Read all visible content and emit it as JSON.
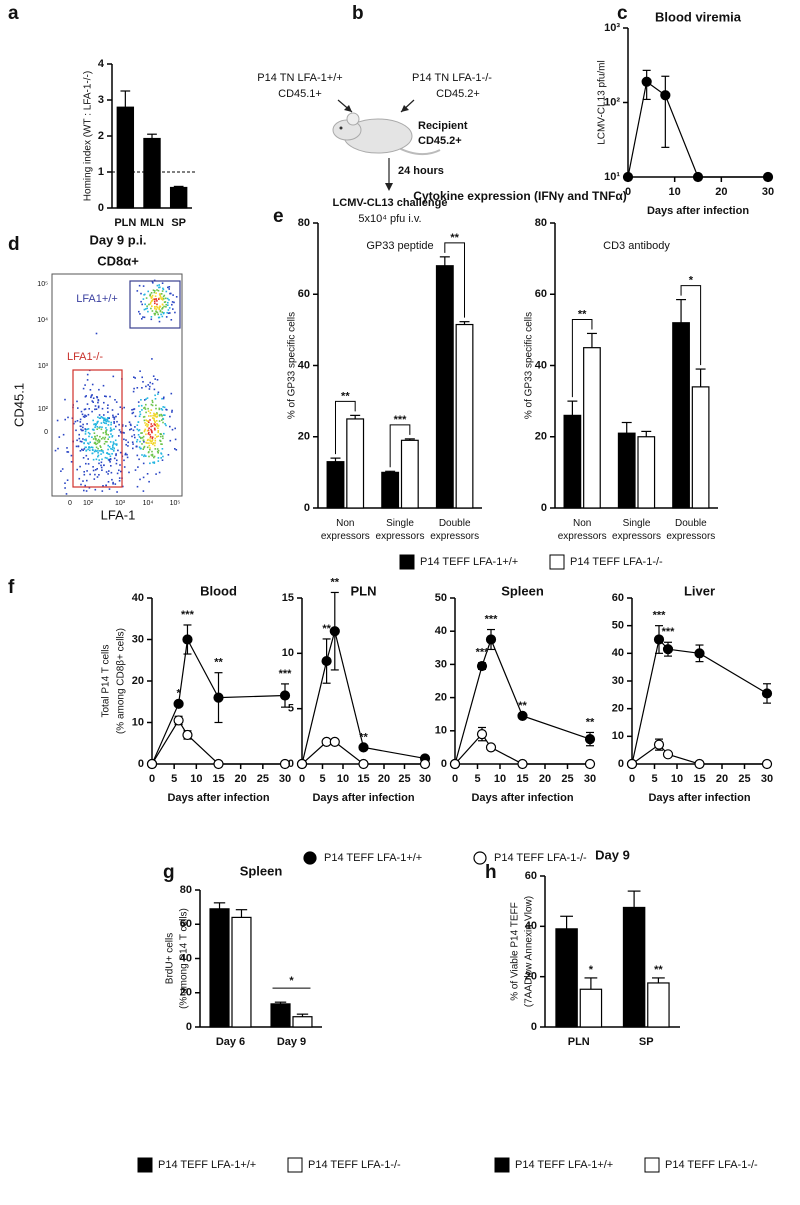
{
  "panel_letters": [
    "a",
    "b",
    "c",
    "d",
    "e",
    "f",
    "g",
    "h"
  ],
  "panel_b": {
    "donor_wt": "P14 TN LFA-1+/+",
    "donor_wt_marker": "CD45.1+",
    "donor_ko": "P14 TN LFA-1-/-",
    "donor_ko_marker": "CD45.2+",
    "recipient": "Recipient",
    "recipient_marker": "CD45.2+",
    "delay": "24 hours",
    "challenge": "LCMV-CL13 challenge",
    "dose": "5x10⁴ pfu i.v."
  },
  "panel_d": {
    "title": "Day 9 p.i.",
    "subtitle": "CD8α+",
    "gate_wt": "LFA1+/+",
    "gate_ko": "LFA1-/-",
    "ylabel": "CD45.1",
    "xlabel": "LFA-1",
    "yticks": [
      "10⁵",
      "10⁴",
      "10³",
      "10²",
      "0"
    ],
    "xticks": [
      "0",
      "10²",
      "10³",
      "10⁴",
      "10⁵"
    ]
  },
  "panel_e_title": "Cytokine expression (IFNγ and TNFα)",
  "chart_data": [
    {
      "type": "bar",
      "ylabel": "Homing index (WT : LFA-1-/-)",
      "categories": [
        "PLN",
        "MLN",
        "SP"
      ],
      "series": [
        {
          "color": "#000000",
          "values": [
            2.8,
            1.93,
            0.57
          ],
          "errors": [
            0.45,
            0.12,
            0.03
          ]
        }
      ],
      "ylim": [
        0,
        4
      ],
      "yticks": [
        0,
        1,
        2,
        3,
        4
      ],
      "reference_line": 1
    },
    {
      "type": "line",
      "title": "Blood viremia",
      "xlabel": "Days after infection",
      "ylabel": "LCMV-CL13 pfu/ml",
      "log_y": true,
      "x": [
        0,
        4,
        8,
        15,
        30
      ],
      "series": [
        {
          "color": "#000000",
          "values": [
            10,
            190,
            125,
            10,
            10
          ],
          "errors": [
            null,
            80,
            100,
            null,
            null
          ]
        }
      ],
      "xlim": [
        0,
        30
      ],
      "xticks": [
        0,
        10,
        20,
        30
      ],
      "ylim": [
        10,
        1000
      ],
      "yticks": [
        {
          "value": 10,
          "label": "10¹"
        },
        {
          "value": 100,
          "label": "10²"
        },
        {
          "value": 1000,
          "label": "10³"
        }
      ]
    },
    {
      "type": "bar",
      "title": "GP33 peptide",
      "ylabel": "% of GP33 specific cells",
      "categories": [
        "Non expressors",
        "Single expressors",
        "Double expressors"
      ],
      "series": [
        {
          "name": "P14 TEFF LFA-1+/+",
          "color": "#000000",
          "values": [
            13,
            10,
            68
          ],
          "errors": [
            1,
            0.3,
            2.5
          ]
        },
        {
          "name": "P14 TEFF LFA-1-/-",
          "color": "#ffffff",
          "values": [
            25,
            19,
            51.5
          ],
          "errors": [
            1,
            0.4,
            0.8
          ]
        }
      ],
      "sig": [
        "**",
        "***",
        "**"
      ],
      "ylim": [
        0,
        80
      ],
      "yticks": [
        0,
        20,
        40,
        60,
        80
      ]
    },
    {
      "type": "bar",
      "title": "CD3 antibody",
      "ylabel": "% of GP33 specific cells",
      "categories": [
        "Non expressors",
        "Single expressors",
        "Double expressors"
      ],
      "series": [
        {
          "color": "#000000",
          "values": [
            26,
            21,
            52
          ],
          "errors": [
            4,
            3,
            6.5
          ]
        },
        {
          "color": "#ffffff",
          "values": [
            45,
            20,
            34
          ],
          "errors": [
            4,
            1.5,
            5
          ]
        }
      ],
      "sig": [
        "**",
        null,
        "*"
      ],
      "ylim": [
        0,
        80
      ],
      "yticks": [
        0,
        20,
        40,
        60,
        80
      ]
    },
    {
      "type": "line",
      "title": "Blood",
      "xlabel": "Days after infection",
      "ylabel": [
        "Total P14 T cells",
        "(% among CD8β+ cells)"
      ],
      "x": [
        0,
        6,
        8,
        15,
        30
      ],
      "series": [
        {
          "name": "P14 TEFF LFA-1+/+",
          "color": "#000000",
          "values": [
            0,
            14.5,
            30,
            16,
            16.5
          ],
          "errors": [
            null,
            null,
            3.5,
            6,
            2.8
          ]
        },
        {
          "name": "P14 TEFF LFA-1-/-",
          "color": "#ffffff",
          "values": [
            0,
            10.5,
            7,
            0,
            0
          ],
          "errors": [
            null,
            1,
            1,
            null,
            null
          ]
        }
      ],
      "sig": [
        null,
        "*",
        "***",
        "**",
        "***"
      ],
      "xlim": [
        0,
        30
      ],
      "xticks": [
        0,
        5,
        10,
        15,
        20,
        25,
        30
      ],
      "ylim": [
        0,
        40
      ],
      "yticks": [
        0,
        10,
        20,
        30,
        40
      ]
    },
    {
      "type": "line",
      "title": "PLN",
      "xlabel": "Days after infection",
      "x": [
        0,
        6,
        8,
        15,
        30
      ],
      "series": [
        {
          "color": "#000000",
          "values": [
            0,
            9.3,
            12,
            1.5,
            0.5
          ],
          "errors": [
            null,
            2,
            3.5,
            null,
            null
          ]
        },
        {
          "color": "#ffffff",
          "values": [
            0,
            2,
            2,
            0,
            0
          ],
          "errors": [
            null,
            null,
            null,
            null,
            null
          ]
        }
      ],
      "sig": [
        null,
        "**",
        "**",
        "**",
        null
      ],
      "xlim": [
        0,
        30
      ],
      "xticks": [
        0,
        5,
        10,
        15,
        20,
        25,
        30
      ],
      "ylim": [
        0,
        15
      ],
      "yticks": [
        0,
        5,
        10,
        15
      ]
    },
    {
      "type": "line",
      "title": "Spleen",
      "xlabel": "Days after infection",
      "x": [
        0,
        6,
        8,
        15,
        30
      ],
      "series": [
        {
          "color": "#000000",
          "values": [
            0,
            29.5,
            37.5,
            14.5,
            7.5
          ],
          "errors": [
            null,
            1,
            3,
            null,
            2
          ]
        },
        {
          "color": "#ffffff",
          "values": [
            0,
            9,
            5,
            0,
            0
          ],
          "errors": [
            null,
            2,
            0.5,
            null,
            null
          ]
        }
      ],
      "sig": [
        null,
        "***",
        "***",
        "**",
        "**"
      ],
      "xlim": [
        0,
        30
      ],
      "xticks": [
        0,
        5,
        10,
        15,
        20,
        25,
        30
      ],
      "ylim": [
        0,
        50
      ],
      "yticks": [
        0,
        10,
        20,
        30,
        40,
        50
      ]
    },
    {
      "type": "line",
      "title": "Liver",
      "xlabel": "Days after infection",
      "x": [
        0,
        6,
        8,
        15,
        30
      ],
      "series": [
        {
          "color": "#000000",
          "values": [
            0,
            45,
            41.5,
            40,
            25.5
          ],
          "errors": [
            null,
            5,
            2.5,
            3,
            3.5
          ]
        },
        {
          "color": "#ffffff",
          "values": [
            0,
            7,
            3.5,
            0,
            0
          ],
          "errors": [
            null,
            2,
            null,
            null,
            null
          ]
        }
      ],
      "sig": [
        null,
        "***",
        "***",
        null,
        null
      ],
      "xlim": [
        0,
        30
      ],
      "xticks": [
        0,
        5,
        10,
        15,
        20,
        25,
        30
      ],
      "ylim": [
        0,
        60
      ],
      "yticks": [
        0,
        10,
        20,
        30,
        40,
        50,
        60
      ]
    },
    {
      "type": "bar",
      "title": "Spleen",
      "ylabel": [
        "BrdU+ cells",
        "(% among P14 T cells)"
      ],
      "categories": [
        "Day 6",
        "Day 9"
      ],
      "series": [
        {
          "name": "P14 TEFF LFA-1+/+",
          "color": "#000000",
          "values": [
            69,
            13.5
          ],
          "errors": [
            3.5,
            1
          ]
        },
        {
          "name": "P14 TEFF LFA-1-/-",
          "color": "#ffffff",
          "values": [
            64,
            6
          ],
          "errors": [
            4.5,
            1.5
          ]
        }
      ],
      "sig": [
        null,
        "*"
      ],
      "ylim": [
        0,
        80
      ],
      "yticks": [
        0,
        20,
        40,
        60,
        80
      ]
    },
    {
      "type": "bar",
      "title": "Day 9",
      "ylabel": [
        "% of Viable P14 TEFF",
        "(7AADlow Annexin-Vlow)"
      ],
      "categories": [
        "PLN",
        "SP"
      ],
      "series": [
        {
          "name": "P14 TEFF LFA-1+/+",
          "color": "#000000",
          "values": [
            39,
            47.5
          ],
          "errors": [
            5,
            6.5
          ]
        },
        {
          "name": "P14 TEFF LFA-1-/-",
          "color": "#ffffff",
          "values": [
            15,
            17.5
          ],
          "errors": [
            4.5,
            2
          ]
        }
      ],
      "sig": [
        "*",
        "**"
      ],
      "ylim": [
        0,
        60
      ],
      "yticks": [
        0,
        20,
        40,
        60
      ]
    }
  ]
}
